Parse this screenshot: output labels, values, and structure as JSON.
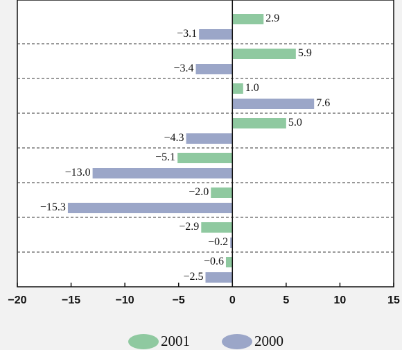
{
  "chart_data": {
    "type": "barh",
    "categories": [
      null,
      null,
      null,
      null,
      null,
      null,
      null,
      null
    ],
    "series": [
      {
        "name": "2001",
        "color": "#8fc9a0",
        "values": [
          2.9,
          5.9,
          1.0,
          5.0,
          -5.1,
          -2.0,
          -2.9,
          -0.6
        ],
        "value_labels": [
          "2.9",
          "5.9",
          "1.0",
          "5.0",
          "−5.1",
          "−2.0",
          "−2.9",
          "−0.6"
        ]
      },
      {
        "name": "2000",
        "color": "#9ba6c8",
        "values": [
          -3.1,
          -3.4,
          7.6,
          -4.3,
          -13.0,
          -15.3,
          -0.2,
          -2.5
        ],
        "value_labels": [
          "−3.1",
          "−3.4",
          "7.6",
          "−4.3",
          "−13.0",
          "−15.3",
          "−0.2",
          "−2.5"
        ]
      }
    ],
    "xlim": [
      -20,
      15
    ],
    "xticks": [
      {
        "value": -20,
        "label": "−20"
      },
      {
        "value": -15,
        "label": "−15"
      },
      {
        "value": -10,
        "label": "−10"
      },
      {
        "value": -5,
        "label": "−5"
      },
      0,
      5,
      10,
      15
    ],
    "legend": "bottom"
  }
}
